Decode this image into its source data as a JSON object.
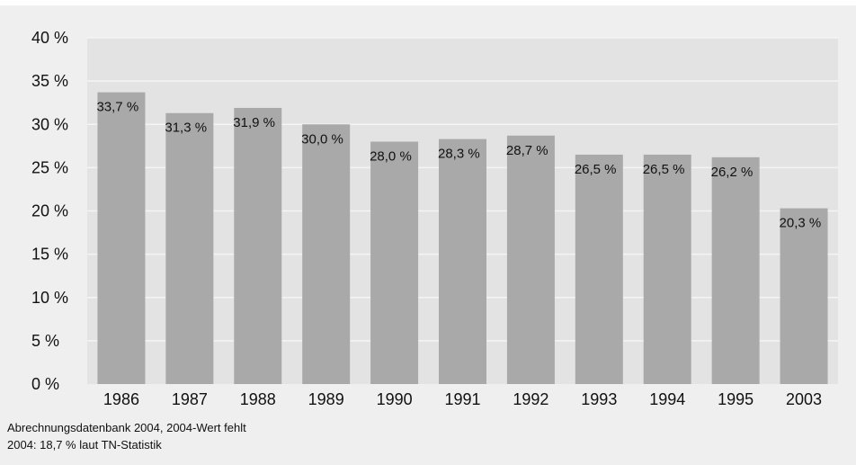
{
  "chart_data": {
    "type": "bar",
    "categories": [
      "1986",
      "1987",
      "1988",
      "1989",
      "1990",
      "1991",
      "1992",
      "1993",
      "1994",
      "1995",
      "2003"
    ],
    "values": [
      33.7,
      31.3,
      31.9,
      30.0,
      28.0,
      28.3,
      28.7,
      26.5,
      26.5,
      26.2,
      20.3
    ],
    "value_labels": [
      "33,7 %",
      "31,3 %",
      "31,9 %",
      "30,0 %",
      "28,0 %",
      "28,3 %",
      "28,7 %",
      "26,5 %",
      "26,5 %",
      "26,2 %",
      "20,3 %"
    ],
    "yticks": [
      0,
      5,
      10,
      15,
      20,
      25,
      30,
      35,
      40
    ],
    "ytick_labels": [
      "0 %",
      "5 %",
      "10 %",
      "15 %",
      "20 %",
      "25 %",
      "30 %",
      "35 %",
      "40 %"
    ],
    "ylim": [
      0,
      40
    ],
    "grid": true,
    "colors": {
      "bar": "#a9a9a9",
      "plot_background": "#e3e3e3",
      "panel_background": "#efefef",
      "gridline": "#f4f4f4"
    }
  },
  "footnotes": {
    "line1": "Abrechnungsdatenbank 2004, 2004-Wert fehlt",
    "line2": "2004: 18,7 % laut TN-Statistik"
  }
}
